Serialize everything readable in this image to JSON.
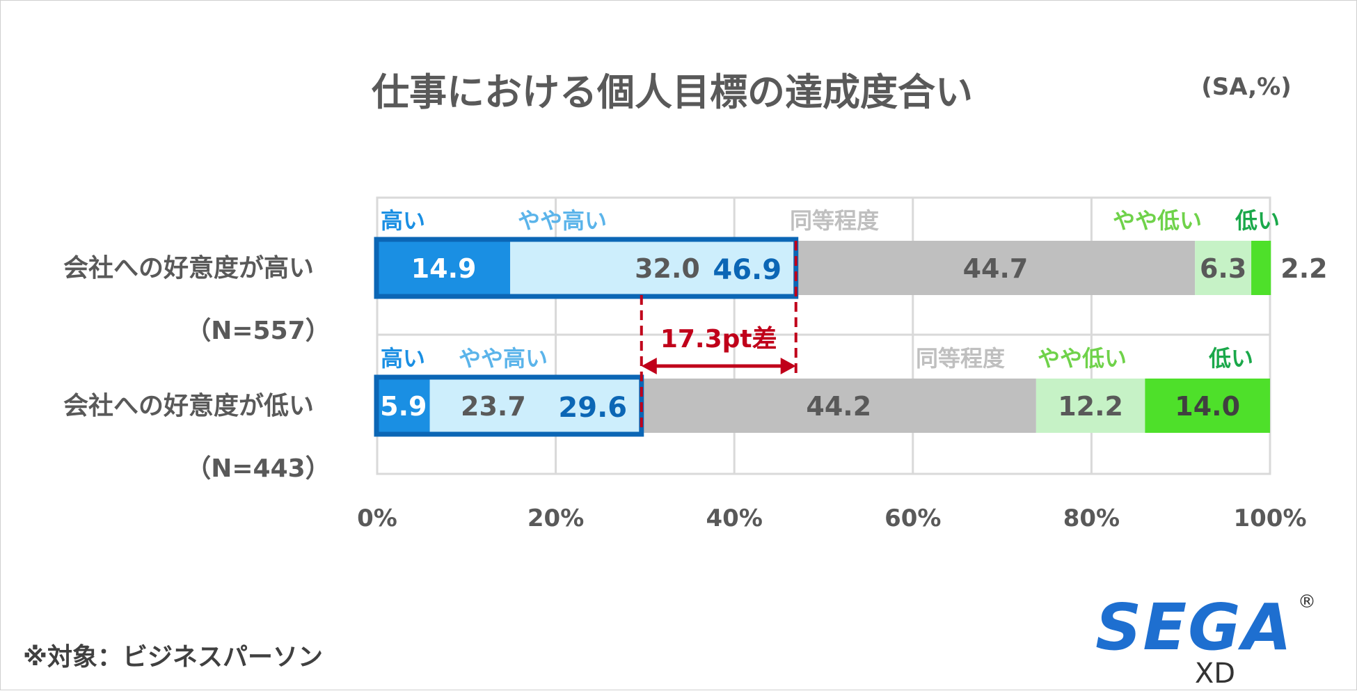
{
  "chart_data": {
    "type": "bar",
    "orientation": "horizontal",
    "stacked": true,
    "title": "仕事における個人目標の達成度合い",
    "unit_note": "(SA,%)",
    "xlim": [
      0,
      100
    ],
    "x_ticks": [
      "0%",
      "20%",
      "40%",
      "60%",
      "80%",
      "100%"
    ],
    "grid": true,
    "categories": [
      {
        "label": "会社への好意度が高い",
        "n_label": "（N=557）"
      },
      {
        "label": "会社への好意度が低い",
        "n_label": "（N=443）"
      }
    ],
    "series": [
      {
        "name": "高い",
        "color": "#1a8fe3",
        "value_color": "#ffffff",
        "values": [
          14.9,
          5.9
        ]
      },
      {
        "name": "やや高い",
        "color": "#cdeefc",
        "value_color": "#595959",
        "values": [
          32.0,
          23.7
        ]
      },
      {
        "name": "同等程度",
        "color": "#bfbfbf",
        "value_color": "#595959",
        "values": [
          44.7,
          44.2
        ]
      },
      {
        "name": "やや低い",
        "color": "#c6f2c6",
        "value_color": "#595959",
        "values": [
          6.3,
          12.2
        ]
      },
      {
        "name": "低い",
        "color": "#4ee02a",
        "value_color": "#404040",
        "values": [
          2.2,
          14.0
        ]
      }
    ],
    "label_colors": [
      "#1a8fe3",
      "#5bb4ea",
      "#bfbfbf",
      "#6fd24a",
      "#1aa84a"
    ],
    "value_labels": [
      [
        "14.9",
        "32.0",
        "44.7",
        "6.3",
        "2.2"
      ],
      [
        "5.9",
        "23.7",
        "44.2",
        "12.2",
        "14.0"
      ]
    ],
    "subtotal_labels": [
      "46.9",
      "29.6"
    ],
    "highlight_color": "#0b66b5",
    "gap_annotation": {
      "text": "17.3pt差",
      "from": 29.6,
      "to": 46.9,
      "color": "#c0001a"
    }
  },
  "footnote": "※対象：ビジネスパーソン",
  "logo": {
    "main": "SEGA",
    "sub": "XD",
    "reg": "®"
  }
}
